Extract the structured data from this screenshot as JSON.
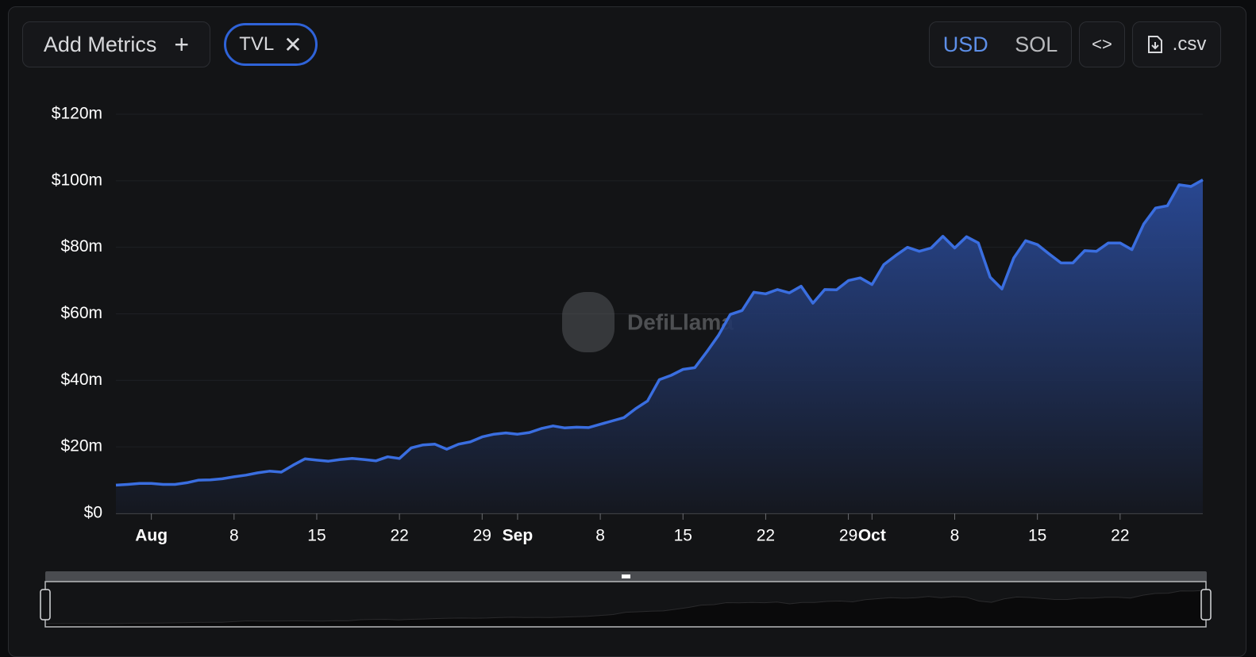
{
  "toolbar": {
    "add_metrics": "Add Metrics",
    "metric": "TVL",
    "currencies": [
      "USD",
      "SOL"
    ],
    "active_currency": "USD",
    "csv": ".csv"
  },
  "watermark": "DefiLlama",
  "chart_data": {
    "type": "area",
    "color": "#3a6ee0",
    "categories": [
      "Jul 29",
      "Jul 30",
      "Jul 31",
      "Aug 1",
      "Aug 2",
      "Aug 3",
      "Aug 4",
      "Aug 5",
      "Aug 6",
      "Aug 7",
      "Aug 8",
      "Aug 9",
      "Aug 10",
      "Aug 11",
      "Aug 12",
      "Aug 13",
      "Aug 14",
      "Aug 15",
      "Aug 16",
      "Aug 17",
      "Aug 18",
      "Aug 19",
      "Aug 20",
      "Aug 21",
      "Aug 22",
      "Aug 23",
      "Aug 24",
      "Aug 25",
      "Aug 26",
      "Aug 27",
      "Aug 28",
      "Aug 29",
      "Aug 30",
      "Aug 31",
      "Sep 1",
      "Sep 2",
      "Sep 3",
      "Sep 4",
      "Sep 5",
      "Sep 6",
      "Sep 7",
      "Sep 8",
      "Sep 9",
      "Sep 10",
      "Sep 11",
      "Sep 12",
      "Sep 13",
      "Sep 14",
      "Sep 15",
      "Sep 16",
      "Sep 17",
      "Sep 18",
      "Sep 19",
      "Sep 20",
      "Sep 21",
      "Sep 22",
      "Sep 23",
      "Sep 24",
      "Sep 25",
      "Sep 26",
      "Sep 27",
      "Sep 28",
      "Sep 29",
      "Sep 30",
      "Oct 1",
      "Oct 2",
      "Oct 3",
      "Oct 4",
      "Oct 5",
      "Oct 6",
      "Oct 7",
      "Oct 8",
      "Oct 9",
      "Oct 10",
      "Oct 11",
      "Oct 12",
      "Oct 13",
      "Oct 14",
      "Oct 15",
      "Oct 16",
      "Oct 17",
      "Oct 18",
      "Oct 19",
      "Oct 20",
      "Oct 21",
      "Oct 22",
      "Oct 23",
      "Oct 24",
      "Oct 25",
      "Oct 26",
      "Oct 27",
      "Oct 28",
      "Oct 29"
    ],
    "values": [
      8.5,
      8.7,
      9.0,
      9.0,
      8.7,
      8.7,
      9.2,
      10.0,
      10.1,
      10.4,
      11.0,
      11.5,
      12.2,
      12.7,
      12.4,
      14.5,
      16.4,
      16.0,
      15.7,
      16.2,
      16.5,
      16.2,
      15.8,
      17.0,
      16.5,
      19.7,
      20.6,
      20.8,
      19.3,
      20.8,
      21.5,
      23.0,
      23.8,
      24.2,
      23.8,
      24.3,
      25.5,
      26.3,
      25.7,
      25.9,
      25.8,
      26.8,
      27.8,
      28.8,
      31.5,
      33.8,
      40.2,
      41.5,
      43.3,
      43.8,
      48.5,
      53.5,
      59.8,
      61.0,
      66.5,
      66.0,
      67.3,
      66.3,
      68.3,
      63.2,
      67.3,
      67.2,
      70.0,
      70.8,
      68.8,
      74.8,
      77.5,
      80.0,
      78.8,
      79.8,
      83.3,
      79.8,
      83.2,
      81.3,
      71.0,
      67.5,
      76.8,
      82.0,
      80.8,
      78.0,
      75.3,
      75.3,
      79.0,
      78.8,
      81.3,
      81.3,
      79.3,
      87.0,
      91.8,
      92.5,
      98.8,
      98.3,
      100.3
    ],
    "ylim": [
      0,
      120
    ],
    "yticks": [
      {
        "value": 0,
        "label": "$0"
      },
      {
        "value": 20,
        "label": "$20m"
      },
      {
        "value": 40,
        "label": "$40m"
      },
      {
        "value": 60,
        "label": "$60m"
      },
      {
        "value": 80,
        "label": "$80m"
      },
      {
        "value": 100,
        "label": "$100m"
      },
      {
        "value": 120,
        "label": "$120m"
      }
    ],
    "xticks": [
      {
        "value": "Aug 1",
        "label": "Aug"
      },
      {
        "value": "Aug 8",
        "label": "8"
      },
      {
        "value": "Aug 15",
        "label": "15"
      },
      {
        "value": "Aug 22",
        "label": "22"
      },
      {
        "value": "Aug 29",
        "label": "29"
      },
      {
        "value": "Sep 1",
        "label": "Sep"
      },
      {
        "value": "Sep 8",
        "label": "8"
      },
      {
        "value": "Sep 15",
        "label": "15"
      },
      {
        "value": "Sep 22",
        "label": "22"
      },
      {
        "value": "Sep 29",
        "label": "29"
      },
      {
        "value": "Oct 1",
        "label": "Oct"
      },
      {
        "value": "Oct 8",
        "label": "8"
      },
      {
        "value": "Oct 15",
        "label": "15"
      },
      {
        "value": "Oct 22",
        "label": "22"
      }
    ],
    "grid": true
  }
}
